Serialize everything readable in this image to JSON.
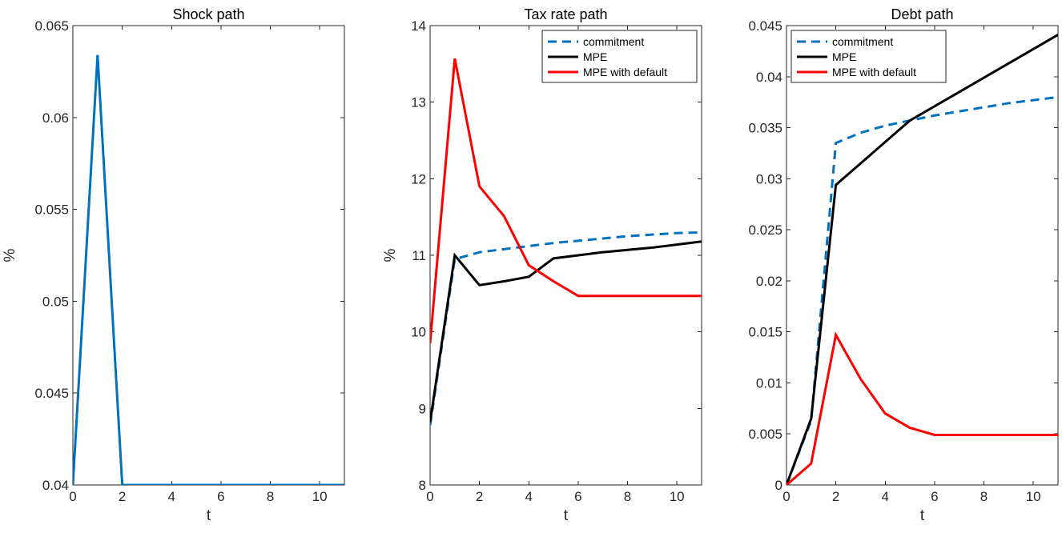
{
  "chart_data": [
    {
      "type": "line",
      "title": "Shock path",
      "xlabel": "t",
      "ylabel": "%",
      "xlim": [
        0,
        11
      ],
      "ylim": [
        0.04,
        0.065
      ],
      "xticks": [
        0,
        2,
        4,
        6,
        8,
        10
      ],
      "yticks": [
        0.04,
        0.045,
        0.05,
        0.055,
        0.06,
        0.065
      ],
      "xtick_labels": [
        "0",
        "2",
        "4",
        "6",
        "8",
        "10"
      ],
      "ytick_labels": [
        "0.04",
        "0.045",
        "0.05",
        "0.055",
        "0.06",
        "0.065"
      ],
      "grid": false,
      "legend": null,
      "series": [
        {
          "color": "#0072BD",
          "dash": "solid",
          "x": [
            0,
            1,
            2,
            3,
            4,
            5,
            6,
            7,
            8,
            9,
            10,
            11
          ],
          "y": [
            0.04,
            0.0634,
            0.04,
            0.04,
            0.04,
            0.04,
            0.04,
            0.04,
            0.04,
            0.04,
            0.04,
            0.04
          ]
        }
      ]
    },
    {
      "type": "line",
      "title": "Tax rate path",
      "xlabel": "t",
      "ylabel": "%",
      "xlim": [
        0,
        11
      ],
      "ylim": [
        8,
        14
      ],
      "xticks": [
        0,
        2,
        4,
        6,
        8,
        10
      ],
      "yticks": [
        8,
        9,
        10,
        11,
        12,
        13,
        14
      ],
      "xtick_labels": [
        "0",
        "2",
        "4",
        "6",
        "8",
        "10"
      ],
      "ytick_labels": [
        "8",
        "9",
        "10",
        "11",
        "12",
        "13",
        "14"
      ],
      "grid": false,
      "legend": "top-right",
      "series": [
        {
          "name": "commitment",
          "color": "#0072BD",
          "dash": "dashed",
          "x": [
            0,
            1,
            2,
            3,
            4,
            5,
            6,
            7,
            8,
            9,
            10,
            11
          ],
          "y": [
            8.78,
            10.95,
            11.04,
            11.08,
            11.12,
            11.16,
            11.19,
            11.22,
            11.25,
            11.27,
            11.29,
            11.3
          ]
        },
        {
          "name": "MPE",
          "color": "#000000",
          "dash": "solid",
          "x": [
            0,
            1,
            2,
            3,
            4,
            5,
            6,
            7,
            8,
            9,
            10,
            11
          ],
          "y": [
            8.82,
            11.0,
            10.61,
            10.66,
            10.72,
            10.96,
            11.0,
            11.04,
            11.07,
            11.1,
            11.14,
            11.18
          ]
        },
        {
          "name": "MPE with default",
          "color": "#FF0000",
          "dash": "solid",
          "x": [
            0,
            1,
            2,
            3,
            4,
            5,
            6,
            7,
            8,
            9,
            10,
            11
          ],
          "y": [
            9.85,
            13.57,
            11.9,
            11.51,
            10.87,
            10.66,
            10.47,
            10.47,
            10.47,
            10.47,
            10.47,
            10.47
          ]
        }
      ]
    },
    {
      "type": "line",
      "title": "Debt path",
      "xlabel": "t",
      "ylabel": "",
      "xlim": [
        0,
        11
      ],
      "ylim": [
        0,
        0.045
      ],
      "xticks": [
        0,
        2,
        4,
        6,
        8,
        10
      ],
      "yticks": [
        0,
        0.005,
        0.01,
        0.015,
        0.02,
        0.025,
        0.03,
        0.035,
        0.04,
        0.045
      ],
      "xtick_labels": [
        "0",
        "2",
        "4",
        "6",
        "8",
        "10"
      ],
      "ytick_labels": [
        "0",
        "0.005",
        "0.01",
        "0.015",
        "0.02",
        "0.025",
        "0.03",
        "0.035",
        "0.04",
        "0.045"
      ],
      "grid": false,
      "legend": "top-left",
      "series": [
        {
          "name": "commitment",
          "color": "#0072BD",
          "dash": "dashed",
          "x": [
            0,
            1,
            2,
            3,
            4,
            5,
            6,
            7,
            8,
            9,
            10,
            11
          ],
          "y": [
            0,
            0.0063,
            0.0335,
            0.0345,
            0.0352,
            0.0357,
            0.0362,
            0.0366,
            0.037,
            0.0374,
            0.0377,
            0.038
          ]
        },
        {
          "name": "MPE",
          "color": "#000000",
          "dash": "solid",
          "x": [
            0,
            1,
            2,
            3,
            4,
            5,
            6,
            7,
            8,
            9,
            10,
            11
          ],
          "y": [
            0,
            0.0065,
            0.0294,
            0.0315,
            0.0336,
            0.0357,
            0.0371,
            0.0385,
            0.0399,
            0.0413,
            0.0427,
            0.0441
          ]
        },
        {
          "name": "MPE with default",
          "color": "#FF0000",
          "dash": "solid",
          "x": [
            0,
            1,
            2,
            3,
            4,
            5,
            6,
            7,
            8,
            9,
            10,
            11
          ],
          "y": [
            0,
            0.0021,
            0.0147,
            0.0104,
            0.007,
            0.0056,
            0.0049,
            0.0049,
            0.0049,
            0.0049,
            0.0049,
            0.0049
          ]
        }
      ]
    }
  ]
}
